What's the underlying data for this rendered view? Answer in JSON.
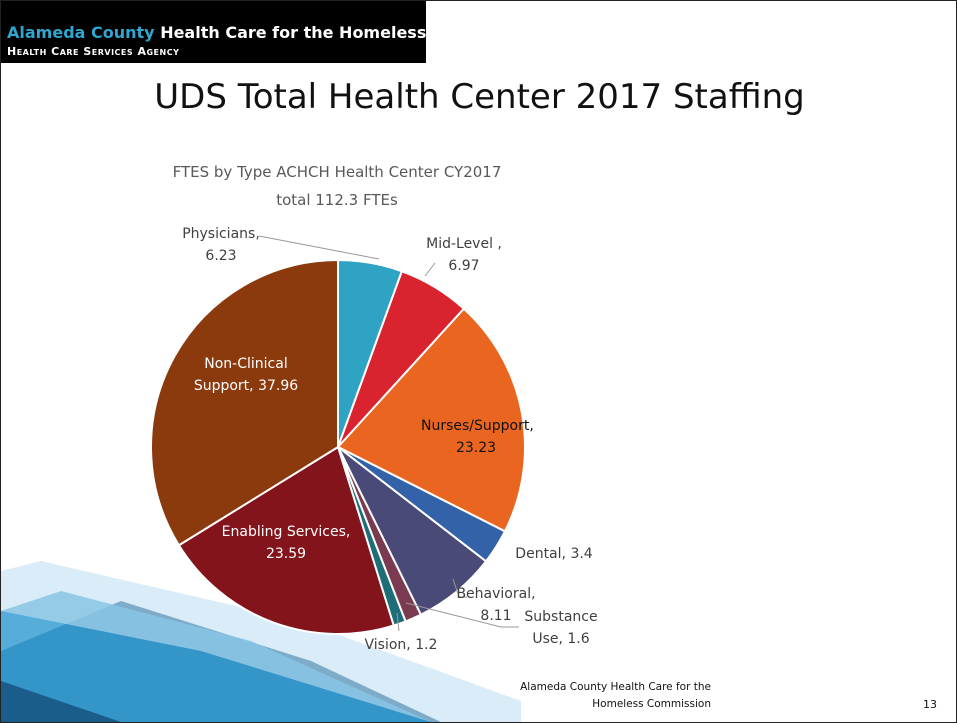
{
  "header": {
    "org": "Alameda County",
    "name": "Health Care for the Homeless",
    "agency": "Health Care Services Agency"
  },
  "slide_title": "UDS Total Health Center 2017 Staffing",
  "chart_data": {
    "type": "pie",
    "title": [
      "FTES by Type ACHCH Health Center CY2017",
      "total 112.3 FTEs"
    ],
    "categories": [
      "Physicians,",
      "Mid-Level ,",
      "Nurses/Support,",
      "Dental,",
      "Behavioral,",
      "Substance Use,",
      "Vision,",
      "Enabling Services,",
      "Non-Clinical Support,"
    ],
    "values": [
      6.23,
      6.97,
      23.23,
      3.4,
      8.11,
      1.6,
      1.2,
      23.59,
      37.96
    ],
    "colors": [
      "#2ea3c4",
      "#d9232e",
      "#ea6620",
      "#3462a8",
      "#4a4a78",
      "#7a3a50",
      "#1e6e78",
      "#84141c",
      "#8b3a0e"
    ]
  },
  "footer": {
    "text": "Alameda County Health Care for the Homeless Commission",
    "page": 13
  }
}
